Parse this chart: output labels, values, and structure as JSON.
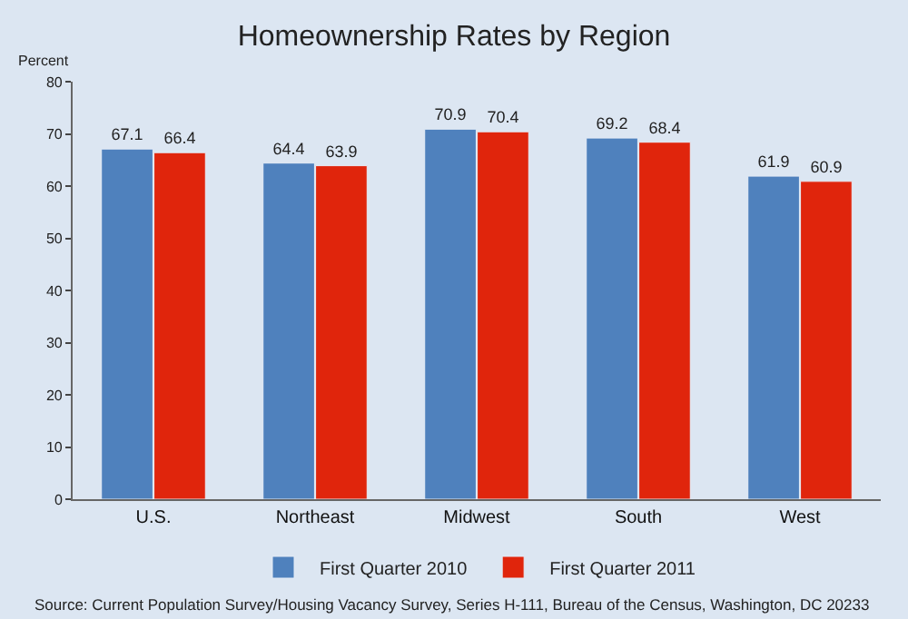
{
  "chart_data": {
    "type": "bar",
    "title": "Homeownership Rates by Region",
    "ylabel": "Percent",
    "categories": [
      "U.S.",
      "Northeast",
      "Midwest",
      "South",
      "West"
    ],
    "series": [
      {
        "name": "First Quarter 2010",
        "color": "#4f81bd",
        "values": [
          67.1,
          64.4,
          70.9,
          69.2,
          61.9
        ]
      },
      {
        "name": "First Quarter 2011",
        "color": "#e0250c",
        "values": [
          66.4,
          63.9,
          70.4,
          68.4,
          60.9
        ]
      }
    ],
    "ylim": [
      0,
      80
    ],
    "yticks": [
      0,
      10,
      20,
      30,
      40,
      50,
      60,
      70,
      80
    ],
    "grid": false,
    "legend": "bottom",
    "data_labels": true,
    "annotations": [
      "Source: Current Population Survey/Housing Vacancy Survey, Series H-111, Bureau of the Census, Washington, DC 20233"
    ]
  }
}
